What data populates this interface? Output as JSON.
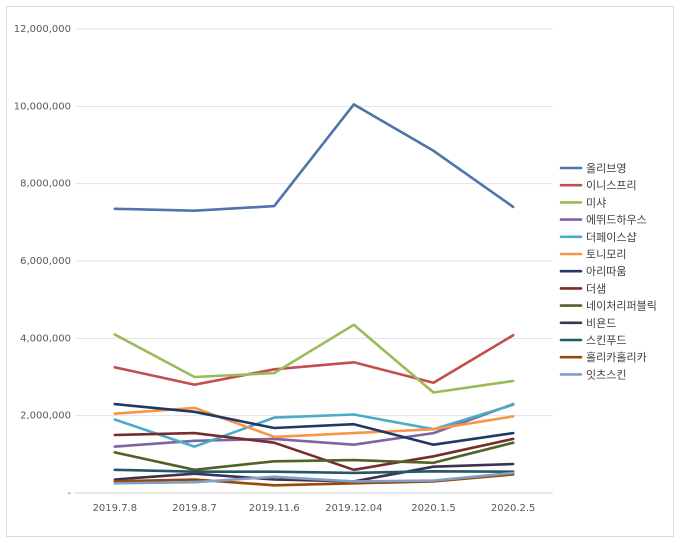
{
  "chart_data": {
    "type": "line",
    "title": "",
    "xlabel": "",
    "ylabel": "",
    "ylim": [
      0,
      12000000
    ],
    "y_ticks": [
      0,
      2000000,
      4000000,
      6000000,
      8000000,
      10000000,
      12000000
    ],
    "y_tick_labels": [
      "-",
      "2,000,000",
      "4,000,000",
      "6,000,000",
      "8,000,000",
      "10,000,000",
      "12,000,000"
    ],
    "categories": [
      "2019.7.8",
      "2019.8.7",
      "2019.11.6",
      "2019.12.04",
      "2020.1.5",
      "2020.2.5"
    ],
    "grid": "horizontal",
    "legend_position": "right",
    "series": [
      {
        "name": "올리브영",
        "color": "#4f74a8",
        "values": [
          7350000,
          7300000,
          7420000,
          10050000,
          8850000,
          7400000
        ]
      },
      {
        "name": "이니스프리",
        "color": "#c0504d",
        "values": [
          3250000,
          2800000,
          3200000,
          3380000,
          2850000,
          4080000
        ]
      },
      {
        "name": "미샤",
        "color": "#9bbb59",
        "values": [
          4100000,
          3000000,
          3100000,
          4350000,
          2600000,
          2900000
        ]
      },
      {
        "name": "에뛰드하우스",
        "color": "#8064a2",
        "values": [
          1200000,
          1350000,
          1400000,
          1250000,
          1550000,
          2300000
        ]
      },
      {
        "name": "더페이스샵",
        "color": "#4bacc6",
        "values": [
          1900000,
          1200000,
          1950000,
          2030000,
          1650000,
          2280000
        ]
      },
      {
        "name": "토니모리",
        "color": "#f79646",
        "values": [
          2050000,
          2200000,
          1450000,
          1550000,
          1650000,
          1980000
        ]
      },
      {
        "name": "아리따움",
        "color": "#203864",
        "values": [
          2300000,
          2100000,
          1680000,
          1780000,
          1250000,
          1550000
        ]
      },
      {
        "name": "더샘",
        "color": "#772c2a",
        "values": [
          1500000,
          1550000,
          1300000,
          600000,
          950000,
          1400000
        ]
      },
      {
        "name": "네이처리퍼블릭",
        "color": "#4f6228",
        "values": [
          1050000,
          600000,
          820000,
          850000,
          780000,
          1300000
        ]
      },
      {
        "name": "비욘드",
        "color": "#3f3151",
        "values": [
          350000,
          500000,
          350000,
          300000,
          680000,
          750000
        ]
      },
      {
        "name": "스킨푸드",
        "color": "#215968",
        "values": [
          600000,
          550000,
          550000,
          520000,
          560000,
          550000
        ]
      },
      {
        "name": "홀리카홀리카",
        "color": "#984807",
        "values": [
          300000,
          350000,
          200000,
          250000,
          300000,
          480000
        ]
      },
      {
        "name": "잇츠스킨",
        "color": "#7f9fc6",
        "values": [
          250000,
          280000,
          420000,
          300000,
          320000,
          520000
        ]
      }
    ]
  }
}
